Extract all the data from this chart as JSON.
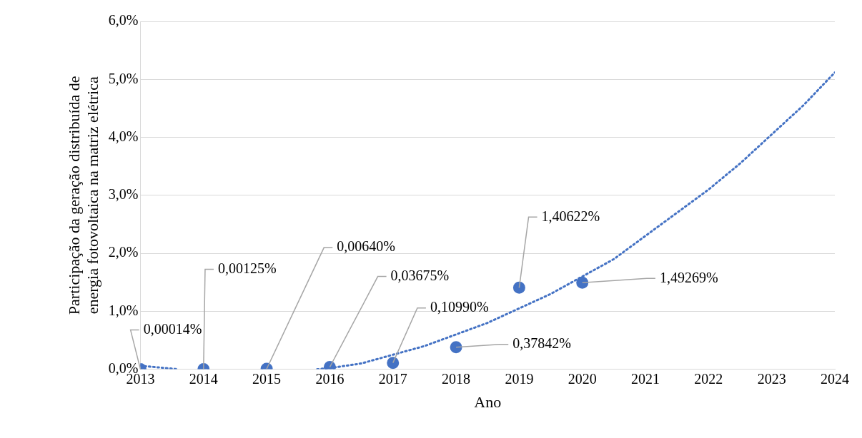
{
  "chart_data": {
    "type": "scatter",
    "xlabel": "Ano",
    "ylabel": "Participação da geração distribuída de\nenergia fotovoltaica na matriz elétrica",
    "xlim": [
      2013,
      2024
    ],
    "xticks": [
      2013,
      2014,
      2015,
      2016,
      2017,
      2018,
      2019,
      2020,
      2021,
      2022,
      2023,
      2024
    ],
    "ylim": [
      0,
      6
    ],
    "yticks": [
      {
        "value": 0,
        "label": "0,0%"
      },
      {
        "value": 1,
        "label": "1,0%"
      },
      {
        "value": 2,
        "label": "2,0%"
      },
      {
        "value": 3,
        "label": "3,0%"
      },
      {
        "value": 4,
        "label": "4,0%"
      },
      {
        "value": 5,
        "label": "5,0%"
      },
      {
        "value": 6,
        "label": "6,0%"
      }
    ],
    "grid": "y",
    "legend": false,
    "series": [
      {
        "type": "scatter",
        "color": "#4472c4",
        "marker": "circle",
        "x": [
          2013,
          2014,
          2015,
          2016,
          2017,
          2018,
          2019,
          2020
        ],
        "values": [
          0.00014,
          0.00125,
          0.0064,
          0.03675,
          0.1099,
          0.37842,
          1.40622,
          1.49269
        ],
        "value_labels": [
          "0,00014%",
          "0,00125%",
          "0,00640%",
          "0,03675%",
          "0,10990%",
          "0,37842%",
          "1,40622%",
          "1,49269%"
        ]
      },
      {
        "type": "line",
        "color": "#4472c4",
        "marker": "none",
        "line_style": "dotted",
        "x": [
          2013,
          2013.3,
          2013.6,
          2014.5,
          2015.8,
          2016,
          2016.5,
          2017,
          2017.5,
          2018,
          2018.5,
          2019,
          2019.5,
          2020,
          2020.5,
          2021,
          2021.5,
          2022,
          2022.5,
          2023,
          2023.5,
          2024
        ],
        "values": [
          0.06,
          0.03,
          0.0,
          null,
          0.0,
          0.02,
          0.1,
          0.25,
          0.4,
          0.6,
          0.8,
          1.05,
          1.3,
          1.6,
          1.9,
          2.3,
          2.7,
          3.1,
          3.55,
          4.05,
          4.55,
          5.12
        ]
      }
    ]
  }
}
